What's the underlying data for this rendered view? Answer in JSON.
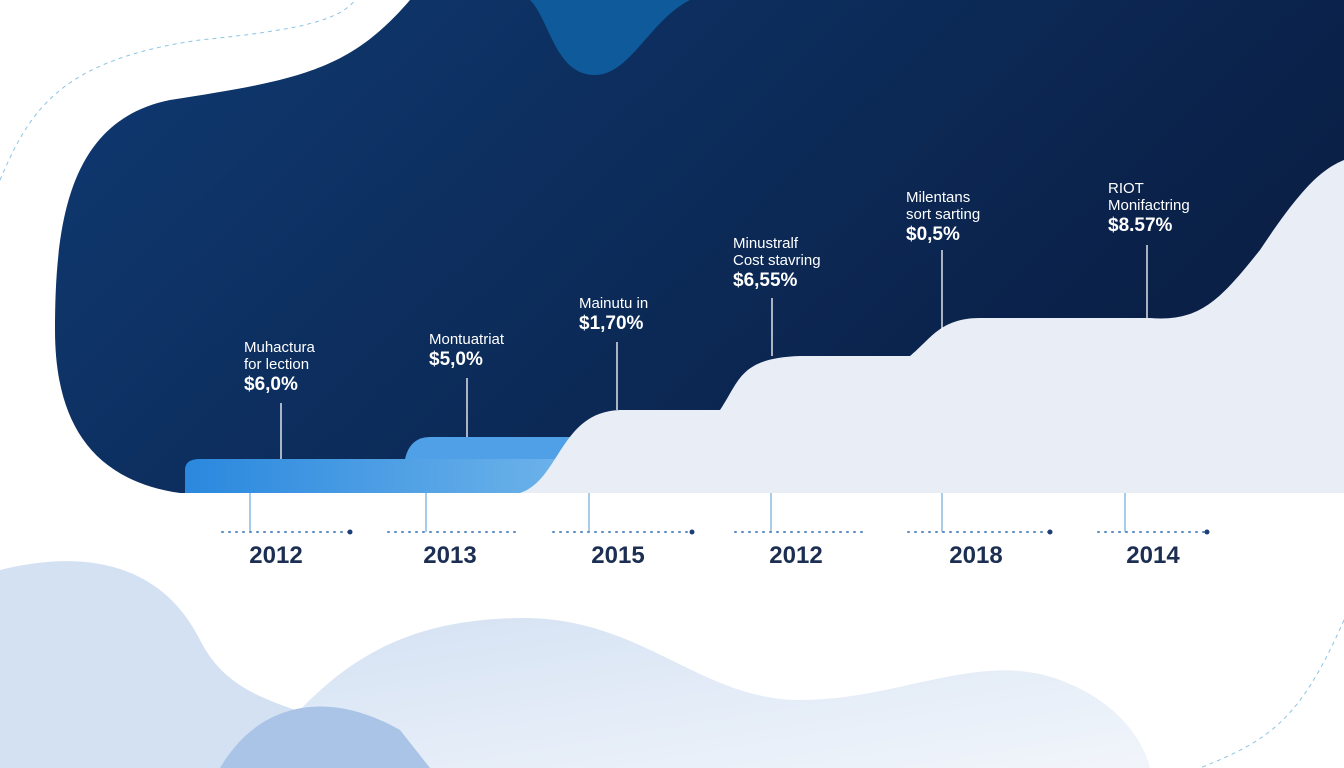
{
  "colors": {
    "dark_navy": "#0d2a55",
    "accent_blue": "#2f8fe0",
    "light_step": "#e8eef7",
    "year_text": "#1c2f52"
  },
  "milestones": [
    {
      "line1": "Muhactura",
      "line2": "for lection",
      "value": "$6,0%",
      "year": "2012"
    },
    {
      "line1": "Montuatriat",
      "line2": "",
      "value": "$5,0%",
      "year": "2013"
    },
    {
      "line1": "Mainutu in",
      "line2": "",
      "value": "$1,70%",
      "year": "2015"
    },
    {
      "line1": "Minustralf",
      "line2": "Cost stavring",
      "value": "$6,55%",
      "year": "2012"
    },
    {
      "line1": "Milentans",
      "line2": "sort sarting",
      "value": "$0,5%",
      "year": "2018"
    },
    {
      "line1": "RIOT",
      "line2": "Monifactring",
      "value": "$8.57%",
      "year": "2014"
    }
  ]
}
